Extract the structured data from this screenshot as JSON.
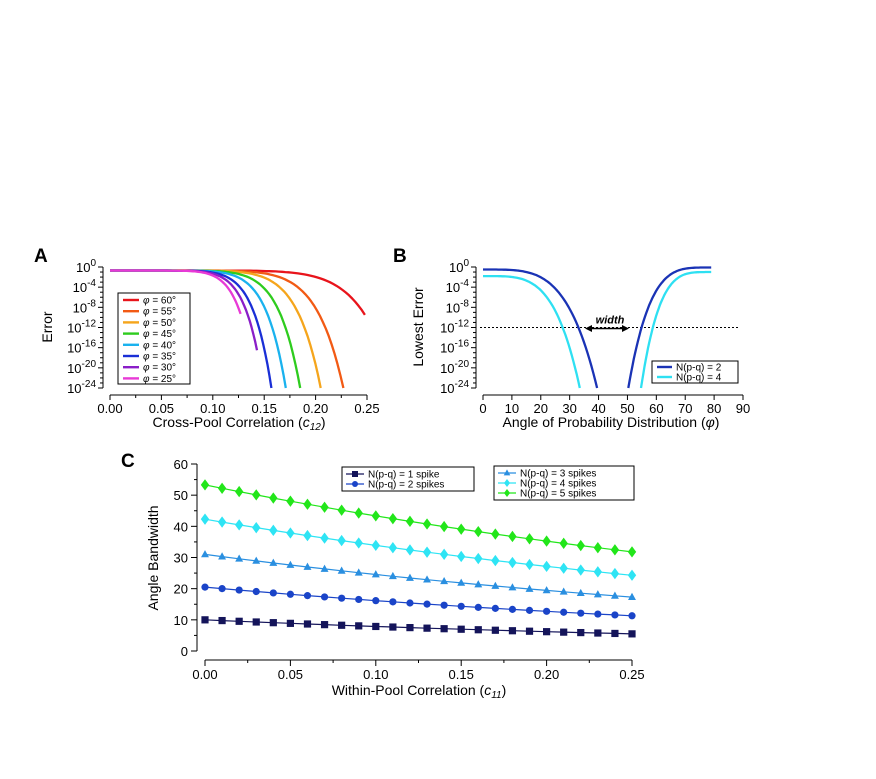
{
  "chart_data": [
    {
      "panel_label": "A",
      "type": "line",
      "xlabel": "Cross-Pool Correlation (",
      "xlabel_var": "c",
      "xlabel_sub": "12",
      "xlabel_close": ")",
      "ylabel": "Error",
      "xlim": [
        0.0,
        0.25
      ],
      "ylim_exp": [
        -24,
        0
      ],
      "log_y": true,
      "x_ticks": [
        "0.00",
        "0.05",
        "0.10",
        "0.15",
        "0.20",
        "0.25"
      ],
      "y_tick_exps": [
        "0",
        "-4",
        "-8",
        "-12",
        "-16",
        "-20",
        "-24"
      ],
      "legend_position": "lower-left",
      "legend_symbol": "φ",
      "series": [
        {
          "name": "= 60°",
          "color": "#e8141b",
          "x_end": 0.248,
          "end_exp": -9.5
        },
        {
          "name": "= 55°",
          "color": "#f25a14",
          "x_end": 0.227,
          "end_exp": -24
        },
        {
          "name": "= 50°",
          "color": "#f5a51c",
          "x_end": 0.205,
          "end_exp": -24
        },
        {
          "name": "= 45°",
          "color": "#2ecc1e",
          "x_end": 0.185,
          "end_exp": -24
        },
        {
          "name": "= 40°",
          "color": "#1ab2ee",
          "x_end": 0.171,
          "end_exp": -24
        },
        {
          "name": "= 35°",
          "color": "#1a2fd6",
          "x_end": 0.157,
          "end_exp": -24
        },
        {
          "name": "= 30°",
          "color": "#8a1ec8",
          "x_end": 0.143,
          "end_exp": -16.5
        },
        {
          "name": "= 25°",
          "color": "#e83ad6",
          "x_end": 0.127,
          "end_exp": -9.3
        }
      ]
    },
    {
      "panel_label": "B",
      "type": "line",
      "xlabel": "Angle of Probability Distribution (",
      "xlabel_var": "φ",
      "xlabel_close": ")",
      "ylabel": "Lowest Error",
      "xlim": [
        0,
        90
      ],
      "ylim_exp": [
        -24,
        0
      ],
      "log_y": true,
      "x_ticks": [
        "0",
        "10",
        "20",
        "30",
        "40",
        "50",
        "60",
        "70",
        "80",
        "90"
      ],
      "y_tick_exps": [
        "0",
        "-4",
        "-8",
        "-12",
        "-16",
        "-20",
        "-24"
      ],
      "threshold_exp": -12,
      "annotation": "width",
      "legend_position": "lower-right",
      "series": [
        {
          "name": "N(p-q)  = 2",
          "color": "#1a33b5",
          "left_start_exp": -0.5,
          "left_end_x": 39.5,
          "right_start_x": 50.3,
          "right_end_x": 79,
          "right_end_exp": -0.1
        },
        {
          "name": "N(p-q)  = 4",
          "color": "#2ee0f2",
          "left_start_exp": -1.8,
          "left_end_x": 33.5,
          "right_start_x": 54.7,
          "right_end_x": 79,
          "right_end_exp": -1.0
        }
      ]
    },
    {
      "panel_label": "C",
      "type": "line",
      "xlabel": "Within-Pool Correlation (",
      "xlabel_var": "c",
      "xlabel_sub": "11",
      "xlabel_close": ")",
      "ylabel": "Angle Bandwidth",
      "xlim": [
        0.0,
        0.25
      ],
      "ylim": [
        0,
        60
      ],
      "x_ticks": [
        "0.00",
        "0.05",
        "0.10",
        "0.15",
        "0.20",
        "0.25"
      ],
      "y_ticks": [
        "0",
        "10",
        "20",
        "30",
        "40",
        "50",
        "60"
      ],
      "x": [
        0.0,
        0.01,
        0.02,
        0.03,
        0.04,
        0.05,
        0.06,
        0.07,
        0.08,
        0.09,
        0.1,
        0.11,
        0.12,
        0.13,
        0.14,
        0.15,
        0.16,
        0.17,
        0.18,
        0.19,
        0.2,
        0.21,
        0.22,
        0.23,
        0.24,
        0.25
      ],
      "series": [
        {
          "name": "N(p-q)  = 1 spike",
          "color": "#14145a",
          "marker": "square",
          "start": 10.0,
          "end": 5.5
        },
        {
          "name": "N(p-q)  = 2 spikes",
          "color": "#1a44c8",
          "marker": "circle",
          "start": 20.5,
          "end": 11.3
        },
        {
          "name": "N(p-q)  = 3 spikes",
          "color": "#2a8fe0",
          "marker": "triangle",
          "start": 31.0,
          "end": 17.3
        },
        {
          "name": "N(p-q)  = 4 spikes",
          "color": "#2ee4f4",
          "marker": "diamond",
          "start": 42.3,
          "end": 24.3
        },
        {
          "name": "N(p-q)  = 5 spikes",
          "color": "#22e61a",
          "marker": "diamond",
          "start": 53.3,
          "end": 31.8
        }
      ]
    }
  ]
}
